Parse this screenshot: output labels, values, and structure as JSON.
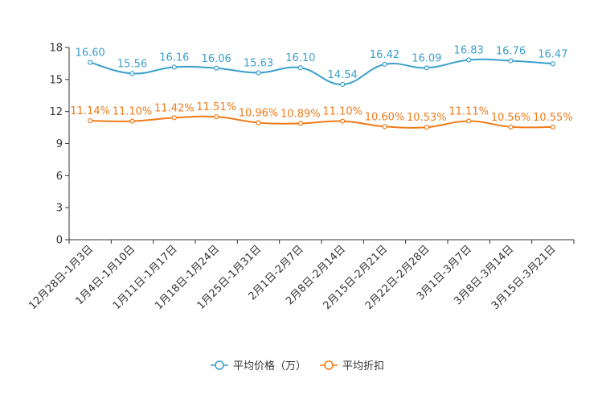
{
  "chart_data": {
    "type": "line",
    "title": "",
    "xlabel": "",
    "ylabel": "",
    "ylim": [
      0,
      18
    ],
    "yticks": [
      "0",
      "3",
      "6",
      "9",
      "12",
      "15",
      "18"
    ],
    "grid": false,
    "legend_position": "bottom-center",
    "categories": [
      "12月28日-1月3日",
      "1月4日-1月10日",
      "1月11日-1月17日",
      "1月18日-1月24日",
      "1月25日-1月31日",
      "2月1日-2月7日",
      "2月8日-2月14日",
      "2月15日-2月21日",
      "2月22日-2月28日",
      "3月1日-3月7日",
      "3月8日-3月14日",
      "3月15日-3月21日"
    ],
    "series": [
      {
        "name": "平均价格（万）",
        "color": "#3a9fcc",
        "values": [
          16.6,
          15.56,
          16.16,
          16.06,
          15.63,
          16.1,
          14.54,
          16.42,
          16.09,
          16.83,
          16.76,
          16.47
        ],
        "labels": [
          "16.60",
          "15.56",
          "16.16",
          "16.06",
          "15.63",
          "16.10",
          "14.54",
          "16.42",
          "16.09",
          "16.83",
          "16.76",
          "16.47"
        ]
      },
      {
        "name": "平均折扣",
        "color": "#f07b1a",
        "values": [
          11.14,
          11.1,
          11.42,
          11.51,
          10.96,
          10.89,
          11.1,
          10.6,
          10.53,
          11.11,
          10.56,
          10.55
        ],
        "labels": [
          "11.14%",
          "11.10%",
          "11.42%",
          "11.51%",
          "10.96%",
          "10.89%",
          "11.10%",
          "10.60%",
          "10.53%",
          "11.11%",
          "10.56%",
          "10.55%"
        ]
      }
    ]
  }
}
